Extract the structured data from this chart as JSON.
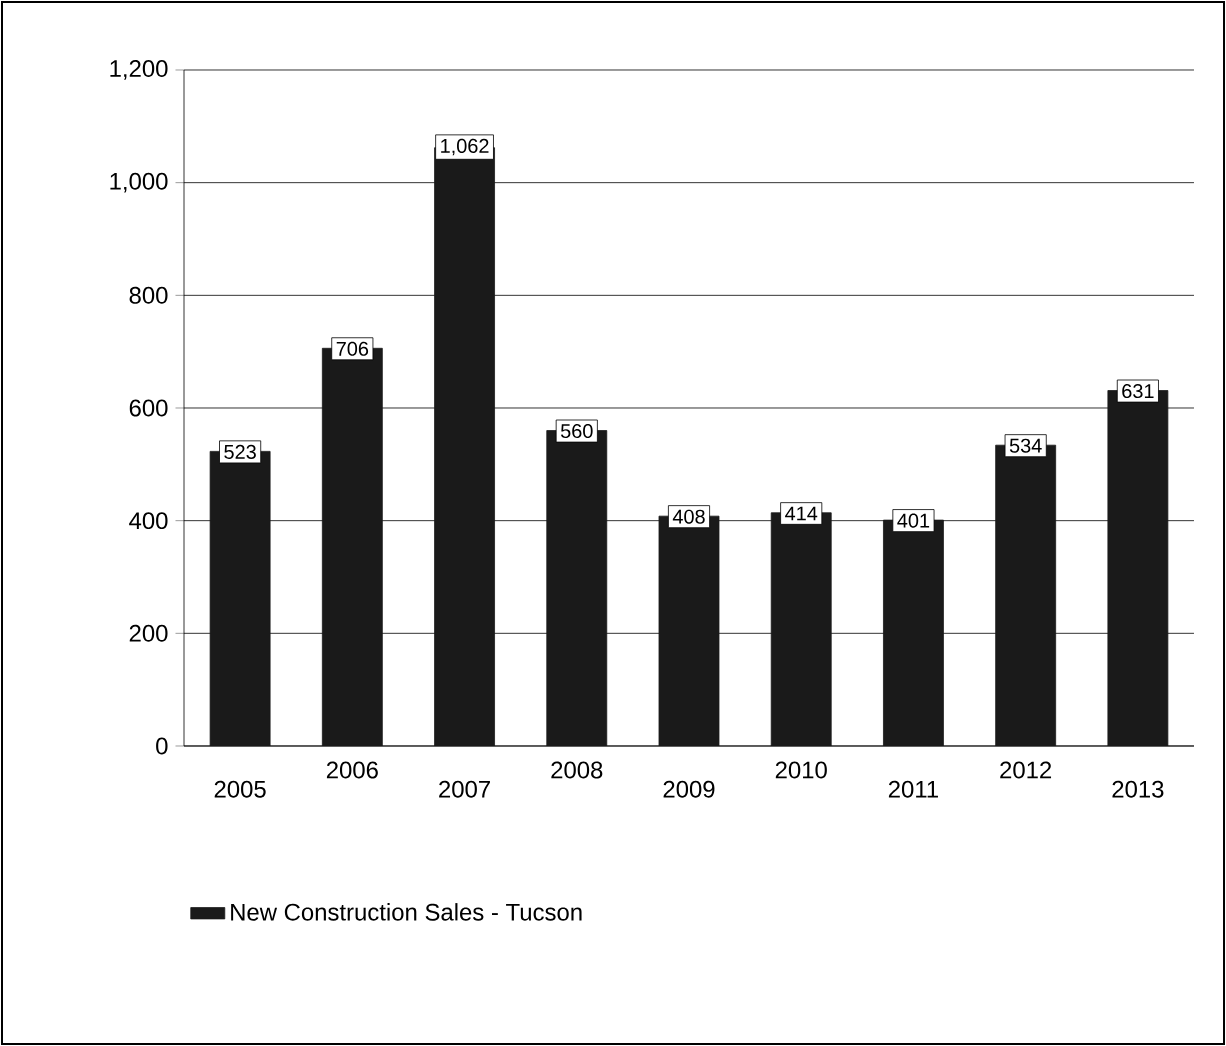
{
  "chart_data": {
    "type": "bar",
    "categories": [
      "2005",
      "2006",
      "2007",
      "2008",
      "2009",
      "2010",
      "2011",
      "2012",
      "2013"
    ],
    "series": [
      {
        "name": "New Construction Sales - Tucson",
        "color": "#1a1a1a",
        "values": [
          523,
          706,
          1062,
          560,
          408,
          414,
          401,
          534,
          631
        ],
        "value_labels": [
          "523",
          "706",
          "1,062",
          "560",
          "408",
          "414",
          "401",
          "534",
          "631"
        ]
      }
    ],
    "ylim": [
      0,
      1200
    ],
    "yticks": [
      0,
      {
        "value": 200,
        "label": "200"
      },
      {
        "value": 400,
        "label": "400"
      },
      {
        "value": 600,
        "label": "600"
      },
      {
        "value": 800,
        "label": "800"
      },
      {
        "value": 1000,
        "label": "1,000"
      },
      {
        "value": 1200,
        "label": "1,200"
      }
    ],
    "grid": "y",
    "legend": "bottom"
  }
}
